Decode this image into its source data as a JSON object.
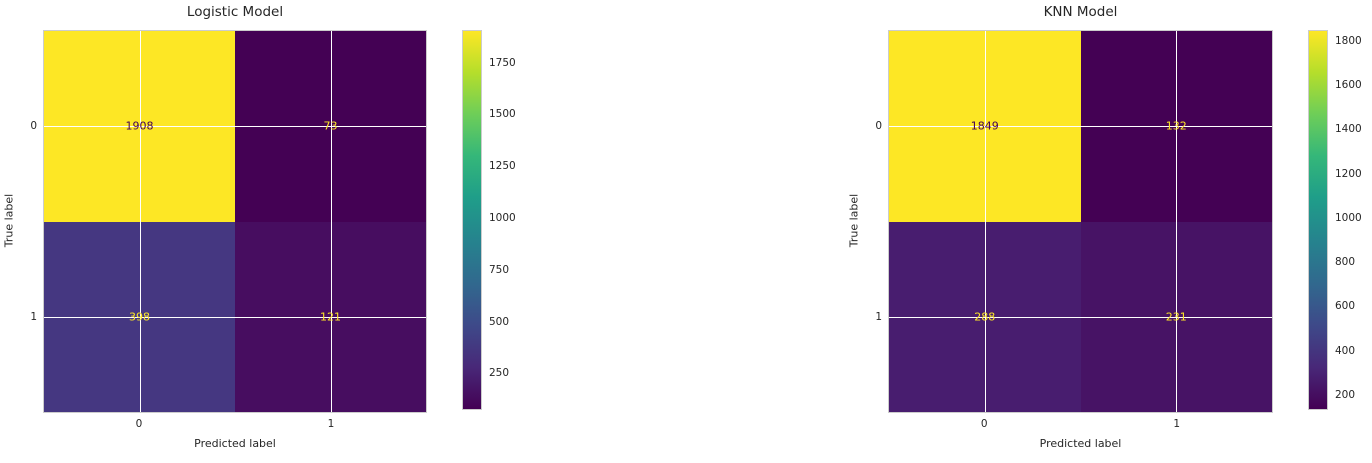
{
  "colors": {
    "background": "#ffffff",
    "axes_border": "#cccccc",
    "grid": "#ffffff",
    "tick_text": "#262626",
    "viridis_min": "#440154",
    "viridis_max": "#fde725"
  },
  "chart_data": [
    {
      "type": "heatmap",
      "title": "Logistic Model",
      "xlabel": "Predicted label",
      "ylabel": "True label",
      "x_tick_labels": [
        "0",
        "1"
      ],
      "y_tick_labels": [
        "0",
        "1"
      ],
      "matrix": [
        [
          1908,
          73
        ],
        [
          398,
          121
        ]
      ],
      "vmin": 73,
      "vmax": 1908,
      "colorbar_ticks": [
        250,
        500,
        750,
        1000,
        1250,
        1500,
        1750
      ],
      "colormap": "viridis",
      "grid_on": true,
      "cell_colors": [
        [
          "#fde725",
          "#440154"
        ],
        [
          "#453781",
          "#470d60"
        ]
      ],
      "cell_text_colors": [
        [
          "#440154",
          "#fde725"
        ],
        [
          "#fde725",
          "#fde725"
        ]
      ]
    },
    {
      "type": "heatmap",
      "title": "KNN Model",
      "xlabel": "Predicted label",
      "ylabel": "True label",
      "x_tick_labels": [
        "0",
        "1"
      ],
      "y_tick_labels": [
        "0",
        "1"
      ],
      "matrix": [
        [
          1849,
          132
        ],
        [
          288,
          231
        ]
      ],
      "vmin": 132,
      "vmax": 1849,
      "colorbar_ticks": [
        200,
        400,
        600,
        800,
        1000,
        1200,
        1400,
        1600,
        1800
      ],
      "colormap": "viridis",
      "grid_on": true,
      "cell_colors": [
        [
          "#fde725",
          "#440154"
        ],
        [
          "#481d6f",
          "#471365"
        ]
      ],
      "cell_text_colors": [
        [
          "#440154",
          "#fde725"
        ],
        [
          "#fde725",
          "#fde725"
        ]
      ]
    }
  ]
}
